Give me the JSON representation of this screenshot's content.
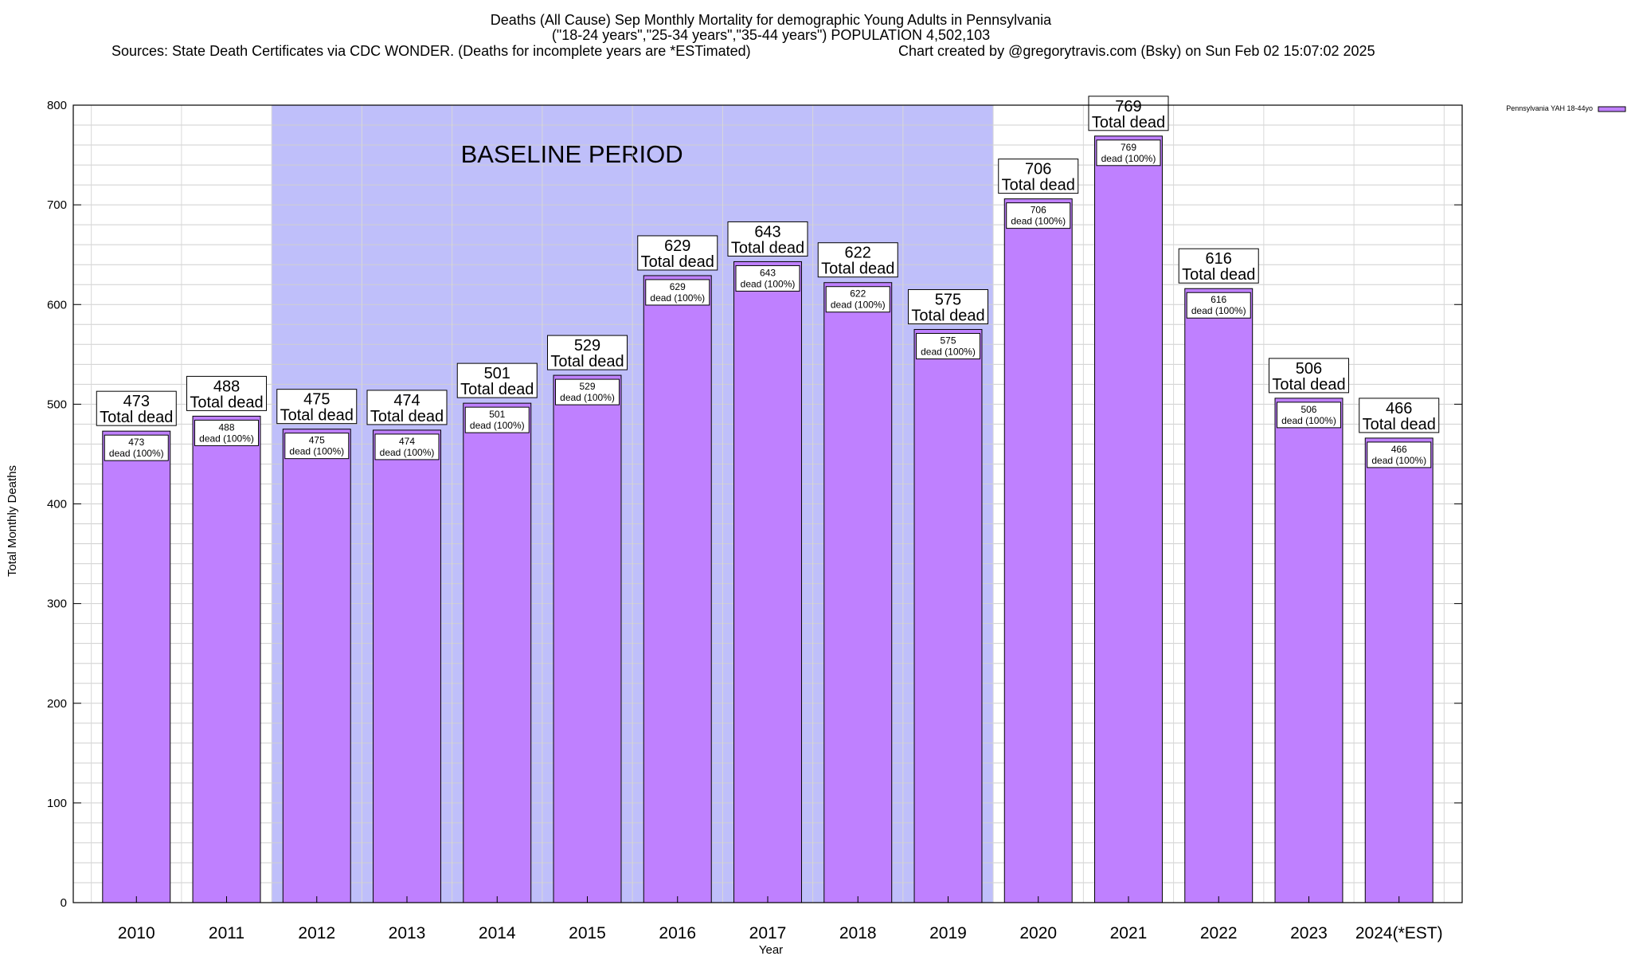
{
  "chart_data": {
    "type": "bar",
    "title": "Deaths (All Cause) Sep Monthly Mortality for demographic Young Adults in Pennsylvania",
    "subtitle": "(\"18-24 years\",\"25-34 years\",\"35-44 years\") POPULATION 4,502,103",
    "source": "Sources: State Death Certificates via CDC WONDER. (Deaths for incomplete years are *ESTimated)",
    "credit": "Chart created by @gregorytravis.com (Bsky) on Sun Feb 02 15:07:02 2025",
    "xlabel": "Year",
    "ylabel": "Total Monthly Deaths",
    "ylim": [
      0,
      800
    ],
    "yticks": [
      0,
      100,
      200,
      300,
      400,
      500,
      600,
      700,
      800
    ],
    "ygrid_minor_step": 20,
    "grid": true,
    "legend": {
      "position": "top-right",
      "entries": [
        "Pennsylvania YAH 18-44yo"
      ]
    },
    "categories": [
      "2010",
      "2011",
      "2012",
      "2013",
      "2014",
      "2015",
      "2016",
      "2017",
      "2018",
      "2019",
      "2020",
      "2021",
      "2022",
      "2023",
      "2024(*EST)"
    ],
    "series": [
      {
        "name": "Pennsylvania YAH 18-44yo",
        "color": "#bf80ff",
        "values": [
          473,
          488,
          475,
          474,
          501,
          529,
          629,
          643,
          622,
          575,
          706,
          769,
          616,
          506,
          466
        ]
      }
    ],
    "annotations": {
      "baseline_label": "BASELINE PERIOD",
      "baseline_start": "2012",
      "baseline_end": "2019",
      "baseline_color": "#bfbffa",
      "total_label": "Total dead",
      "segment_label": "dead (100%)"
    }
  }
}
